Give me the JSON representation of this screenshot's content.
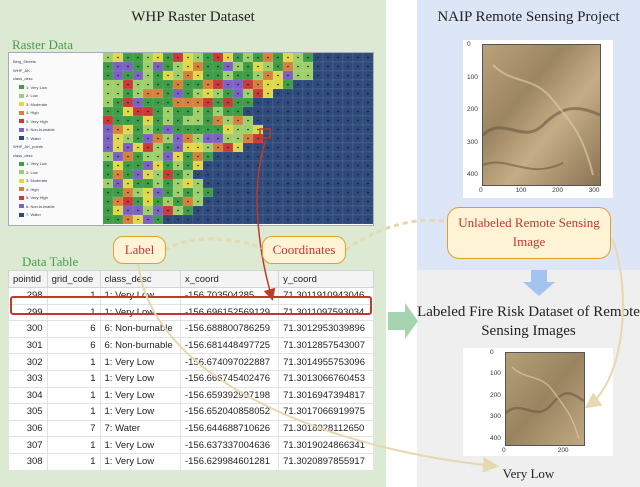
{
  "titles": {
    "whp": "WHP Raster Dataset",
    "naip": "NAIP Remote Sensing Project",
    "raster_data": "Raster Data",
    "data_table": "Data Table",
    "labeled": "Labeled Fire Risk Dataset of Remote Sensing Images"
  },
  "callouts": {
    "label": "Label",
    "coordinates": "Coordinates",
    "unlabeled": "Unlabeled Remote Sensing Image"
  },
  "result_label": "Very Low",
  "table": {
    "headers": [
      "pointid",
      "grid_code",
      "class_desc",
      "x_coord",
      "y_coord"
    ],
    "rows": [
      [
        "298",
        "1",
        "1: Very Low",
        "-156.703504285",
        "71.3011910943046"
      ],
      [
        "299",
        "1",
        "1: Very Low",
        "-156.696152569129",
        "71.3011097593034"
      ],
      [
        "300",
        "6",
        "6: Non-burnable",
        "-156.688800786259",
        "71.3012953039896"
      ],
      [
        "301",
        "6",
        "6: Non-burnable",
        "-156.681448497725",
        "71.3012857543007"
      ],
      [
        "302",
        "1",
        "1: Very Low",
        "-156.674097022887",
        "71.3014955753096"
      ],
      [
        "303",
        "1",
        "1: Very Low",
        "-156.666745402476",
        "71.3013066760453"
      ],
      [
        "304",
        "1",
        "1: Very Low",
        "-156.659392997198",
        "71.3016947394817"
      ],
      [
        "305",
        "1",
        "1: Very Low",
        "-156.652040858052",
        "71.3017066919975"
      ],
      [
        "306",
        "7",
        "7: Water",
        "-156.644688710626",
        "71.3018928112650"
      ],
      [
        "307",
        "1",
        "1: Very Low",
        "-156.637337004636",
        "71.3019024866341"
      ],
      [
        "308",
        "1",
        "1: Very Low",
        "-156.629984601281",
        "71.3020897855917"
      ]
    ]
  },
  "naip_axes": {
    "x_ticks": [
      "0",
      "100",
      "200",
      "300"
    ],
    "y_ticks": [
      "0",
      "100",
      "200",
      "300",
      "400"
    ]
  },
  "labeled_axes": {
    "x_ticks": [
      "0",
      "200"
    ],
    "y_ticks": [
      "0",
      "100",
      "200",
      "300",
      "400"
    ]
  },
  "layer_tree": [
    "Bing_Streets",
    "WHP_AK",
    "class_desc",
    "1: Very Low",
    "2: Low",
    "3: Moderate",
    "4: High",
    "5: Very High",
    "6: Non-burnable",
    "7: Water",
    "WHP_AK_points",
    "class_desc",
    "1: Very Low",
    "2: Low",
    "3: Moderate",
    "4: High",
    "5: Very High",
    "6: Non-burnable",
    "7: Water"
  ],
  "colors": {
    "very_low": "#3f9c47",
    "low": "#9ecf6a",
    "moderate": "#e0d84a",
    "high": "#d6813c",
    "very_high": "#c93a3a",
    "non_burnable": "#7b62c4",
    "water": "#2d4a7a",
    "arrow_red": "#c0392b",
    "arrow_green": "#a6d4b0",
    "arrow_blue": "#a3c4ee",
    "dashed_beige": "#e6d8b0"
  }
}
